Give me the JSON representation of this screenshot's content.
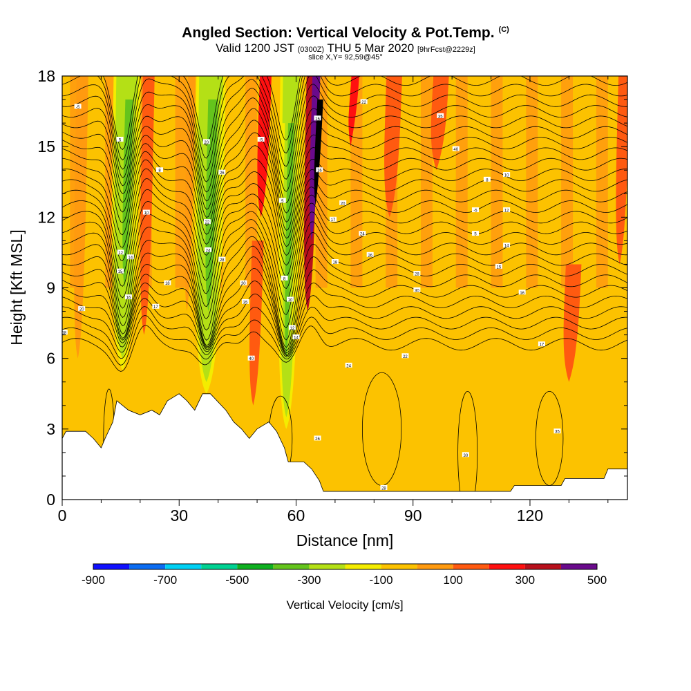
{
  "chart_data": {
    "type": "heatmap",
    "title": "Angled Section: Vertical Velocity & Pot.Temp.",
    "title_mark": "(C)",
    "subtitle_main": "Valid 1200 JST",
    "subtitle_utc": "(0300Z)",
    "subtitle_date": "THU 5 Mar 2020",
    "subtitle_fcst": "[9hrFcst@2229z]",
    "slice": "slice X,Y= 92,59@45°",
    "xlabel": "Distance [nm]",
    "ylabel": "Height [Kft MSL]",
    "xlim": [
      0,
      145
    ],
    "ylim": [
      0,
      18
    ],
    "xticks": [
      "0",
      "30",
      "60",
      "90",
      "120"
    ],
    "xtick_values": [
      0,
      30,
      60,
      90,
      120
    ],
    "yticks": [
      "0",
      "3",
      "6",
      "9",
      "12",
      "15",
      "18"
    ],
    "ytick_values": [
      0,
      3,
      6,
      9,
      12,
      15,
      18
    ],
    "grid": false,
    "colorbar": {
      "title": "Vertical Velocity [cm/s]",
      "labels": [
        "-900",
        "-700",
        "-500",
        "-300",
        "-100",
        "100",
        "300",
        "500"
      ],
      "label_values": [
        -900,
        -700,
        -500,
        -300,
        -100,
        100,
        300,
        500
      ],
      "colors": [
        "#1010ff",
        "#0b6cf2",
        "#00d0f4",
        "#00d292",
        "#0fb020",
        "#64c41c",
        "#b4e016",
        "#f4ec00",
        "#fcc200",
        "#ff9a0f",
        "#ff5a10",
        "#ff1010",
        "#b8101c",
        "#6a0a8c"
      ]
    },
    "updraft_columns": [
      {
        "x": 4,
        "w": 3,
        "level": 9,
        "y0": 6,
        "y1": 18
      },
      {
        "x": 21,
        "w": 3,
        "level": 10,
        "y0": 7,
        "y1": 18
      },
      {
        "x": 32,
        "w": 2,
        "level": 9,
        "y0": 8,
        "y1": 18
      },
      {
        "x": 49,
        "w": 3,
        "level": 10,
        "y0": 4,
        "y1": 11
      },
      {
        "x": 51,
        "w": 3,
        "level": 11,
        "y0": 12,
        "y1": 18
      },
      {
        "x": 63,
        "w": 3,
        "level": 12,
        "y0": 8,
        "y1": 18
      },
      {
        "x": 64,
        "w": 2,
        "level": 13,
        "y0": 11,
        "y1": 18
      },
      {
        "x": 65,
        "w": 1.5,
        "level": 14,
        "y0": 12.5,
        "y1": 17
      },
      {
        "x": 74,
        "w": 2,
        "level": 11,
        "y0": 15,
        "y1": 18
      },
      {
        "x": 84,
        "w": 4,
        "level": 10,
        "y0": 12,
        "y1": 18
      },
      {
        "x": 96,
        "w": 4,
        "level": 10,
        "y0": 14,
        "y1": 18
      },
      {
        "x": 130,
        "w": 4,
        "level": 10,
        "y0": 5,
        "y1": 10
      },
      {
        "x": 143,
        "w": 3,
        "level": 10,
        "y0": 10,
        "y1": 18
      }
    ],
    "downdraft_columns": [
      {
        "x": 15.5,
        "w": 4,
        "level": 6,
        "y0": 6,
        "y1": 18
      },
      {
        "x": 16,
        "w": 2,
        "level": 5,
        "y0": 9,
        "y1": 17
      },
      {
        "x": 37,
        "w": 4.5,
        "level": 6,
        "y0": 5,
        "y1": 18
      },
      {
        "x": 37.5,
        "w": 2.5,
        "level": 5,
        "y0": 8,
        "y1": 17
      },
      {
        "x": 57.5,
        "w": 2.5,
        "level": 6,
        "y0": 3.5,
        "y1": 18
      },
      {
        "x": 57.5,
        "w": 1.5,
        "level": 5,
        "y0": 6,
        "y1": 16
      }
    ],
    "terrain": [
      [
        0,
        2.6
      ],
      [
        1,
        2.9
      ],
      [
        6,
        2.9
      ],
      [
        8,
        2.6
      ],
      [
        10,
        2.2
      ],
      [
        11,
        2.6
      ],
      [
        13,
        3.3
      ],
      [
        14,
        4.2
      ],
      [
        17,
        3.8
      ],
      [
        20,
        3.6
      ],
      [
        23,
        3.8
      ],
      [
        25,
        3.6
      ],
      [
        27,
        4.2
      ],
      [
        30,
        4.5
      ],
      [
        32,
        4.2
      ],
      [
        34,
        3.8
      ],
      [
        36,
        4.5
      ],
      [
        38,
        4.5
      ],
      [
        42,
        3.8
      ],
      [
        44,
        3.3
      ],
      [
        46,
        3.0
      ],
      [
        48,
        2.6
      ],
      [
        50,
        3.0
      ],
      [
        53,
        3.3
      ],
      [
        55,
        2.9
      ],
      [
        57,
        2.2
      ],
      [
        58,
        1.6
      ],
      [
        62,
        1.6
      ],
      [
        64,
        1.3
      ],
      [
        66,
        0.8
      ],
      [
        67,
        0.35
      ],
      [
        89,
        0.35
      ],
      [
        91,
        0.35
      ],
      [
        115,
        0.35
      ],
      [
        116,
        0.6
      ],
      [
        128,
        0.6
      ],
      [
        129,
        0.9
      ],
      [
        139,
        0.9
      ],
      [
        140,
        1.3
      ],
      [
        145,
        1.3
      ]
    ],
    "isentrope_labels": [
      "-5",
      "5",
      "8",
      "10",
      "12",
      "14",
      "15",
      "16",
      "17",
      "18",
      "20",
      "22",
      "24",
      "26",
      "28",
      "30",
      "35",
      "40"
    ]
  }
}
